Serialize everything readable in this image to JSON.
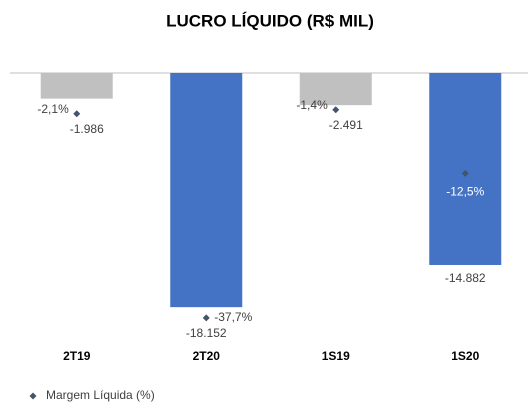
{
  "chart_data": {
    "type": "bar",
    "title": "LUCRO LÍQUIDO (R$ MIL)",
    "categories": [
      "2T19",
      "2T20",
      "1S19",
      "1S20"
    ],
    "values": [
      -1986,
      -18152,
      -2491,
      -14882
    ],
    "value_labels": [
      "-1.986",
      "-18.152",
      "-2.491",
      "-14.882"
    ],
    "colors": [
      "#c0c0c0",
      "#4472c4",
      "#c0c0c0",
      "#4472c4"
    ],
    "ylim": [
      -20000,
      0
    ],
    "y2lim": [
      -40,
      5
    ],
    "series": [
      {
        "name": "Margem Líquida (%)",
        "color": "#44546a",
        "axis": "y2",
        "marker": "diamond",
        "values": [
          -2.1,
          -37.7,
          -1.4,
          -12.5
        ],
        "value_labels": [
          "-2,1%",
          "-37,7%",
          "-1,4%",
          "-12,5%"
        ]
      }
    ]
  }
}
